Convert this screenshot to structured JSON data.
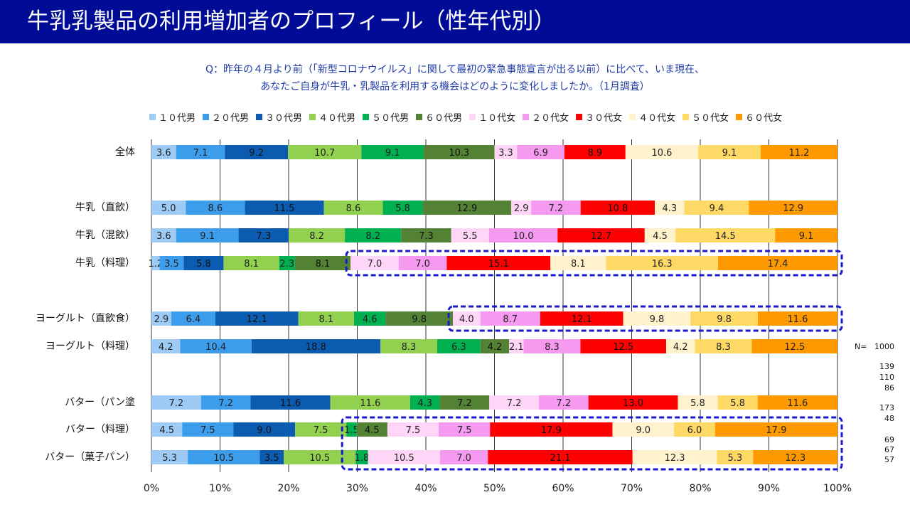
{
  "title": "牛乳乳製品の利用増加者のプロフィール（性年代別）",
  "question": {
    "line1": "Q：昨年の４月より前（「新型コロナウイルス」に関して最初の緊急事態宣言が出る以前）に比べて、いま現在、",
    "line2": "あなたご自身が牛乳・乳製品を利用する機会はどのように変化しましたか。（1月調査）"
  },
  "n_label": "N=",
  "n_values": [
    "1000",
    "139",
    "110",
    "86",
    "173",
    "48",
    "69",
    "67",
    "57"
  ],
  "colors": {
    "title_bg": "#000c96",
    "highlight_box": "#1a1acc",
    "grid": "#000000"
  },
  "chart_data": {
    "type": "bar",
    "orientation": "horizontal",
    "stacked": true,
    "xlim": [
      0,
      100
    ],
    "x_ticks": [
      "0%",
      "10%",
      "20%",
      "30%",
      "40%",
      "50%",
      "60%",
      "70%",
      "80%",
      "90%",
      "100%"
    ],
    "legend_position": "top",
    "categories": [
      "全体",
      "牛乳（直飲）",
      "牛乳（混飲）",
      "牛乳（料理）",
      "ヨーグルト（直飲食）",
      "ヨーグルト（料理）",
      "バター（パン塗",
      "バター（料理）",
      "バター（菓子パン）"
    ],
    "series": [
      {
        "name": "１０代男",
        "color": "#9dcbf5",
        "values": [
          3.6,
          5.0,
          3.6,
          1.2,
          2.9,
          4.2,
          7.2,
          4.5,
          5.3
        ]
      },
      {
        "name": "２０代男",
        "color": "#3d9ded",
        "values": [
          7.1,
          8.6,
          9.1,
          3.5,
          6.4,
          10.4,
          7.2,
          7.5,
          10.5
        ]
      },
      {
        "name": "３０代男",
        "color": "#0b5cb0",
        "values": [
          9.2,
          11.5,
          7.3,
          5.8,
          12.1,
          18.8,
          11.6,
          9.0,
          3.5
        ]
      },
      {
        "name": "４０代男",
        "color": "#92d050",
        "values": [
          10.7,
          8.6,
          8.2,
          8.1,
          8.1,
          8.3,
          11.6,
          7.5,
          10.5
        ]
      },
      {
        "name": "５０代男",
        "color": "#00b050",
        "values": [
          9.1,
          5.8,
          8.2,
          2.3,
          4.6,
          6.3,
          4.3,
          1.5,
          1.8
        ]
      },
      {
        "name": "６０代男",
        "color": "#548235",
        "values": [
          10.3,
          12.9,
          7.3,
          8.1,
          9.8,
          4.2,
          7.2,
          4.5,
          0.0
        ]
      },
      {
        "name": "１０代女",
        "color": "#ffd6f7",
        "values": [
          3.3,
          2.9,
          5.5,
          7.0,
          4.0,
          2.1,
          7.2,
          7.5,
          10.5
        ]
      },
      {
        "name": "２０代女",
        "color": "#f59af0",
        "values": [
          6.9,
          7.2,
          10.0,
          7.0,
          8.7,
          8.3,
          7.2,
          7.5,
          7.0
        ]
      },
      {
        "name": "３０代女",
        "color": "#ff0000",
        "values": [
          8.9,
          10.8,
          12.7,
          15.1,
          12.1,
          12.5,
          13.0,
          17.9,
          21.1
        ]
      },
      {
        "name": "４０代女",
        "color": "#fff2cc",
        "values": [
          10.6,
          4.3,
          4.5,
          8.1,
          9.8,
          4.2,
          5.8,
          9.0,
          12.3
        ]
      },
      {
        "name": "５０代女",
        "color": "#ffd966",
        "values": [
          9.1,
          9.4,
          14.5,
          16.3,
          9.8,
          8.3,
          5.8,
          6.0,
          5.3
        ]
      },
      {
        "name": "６０代女",
        "color": "#ff9900",
        "values": [
          11.2,
          12.9,
          9.1,
          17.4,
          11.6,
          12.5,
          11.6,
          17.9,
          12.3
        ]
      }
    ],
    "value_labels": [
      [
        "3.6",
        "7.1",
        "9.2",
        "10.7",
        "9.1",
        "10.3",
        "3.3",
        "6.9",
        "8.9",
        "10.6",
        "9.1",
        "11.2"
      ],
      [
        "5.0",
        "8.6",
        "11.5",
        "8.6",
        "5.8",
        "12.9",
        "2.9",
        "7.2",
        "10.8",
        "4.3",
        "9.4",
        "12.9"
      ],
      [
        "3.6",
        "9.1",
        "7.3",
        "8.2",
        "8.2",
        "7.3",
        "5.5",
        "10.0",
        "12.7",
        "4.5",
        "14.5",
        "9.1"
      ],
      [
        "1.2",
        "3.5",
        "5.8",
        "8.1",
        "2.3",
        "8.1",
        "7.0",
        "7.0",
        "15.1",
        "8.1",
        "16.3",
        "17.4"
      ],
      [
        "2.9",
        "6.4",
        "12.1",
        "8.1",
        "4.6",
        "9.8",
        "4.0",
        "8.7",
        "12.1",
        "9.8",
        "9.8",
        "11.6"
      ],
      [
        "4.2",
        "10.4",
        "18.8",
        "8.3",
        "6.3",
        "4.2",
        "2.1",
        "8.3",
        "12.5",
        "4.2",
        "8.3",
        "12.5"
      ],
      [
        "7.2",
        "7.2",
        "11.6",
        "11.6",
        "4.3",
        "7.2",
        "7.2",
        "7.2",
        "13.0",
        "5.8",
        "5.8",
        "11.6"
      ],
      [
        "4.5",
        "7.5",
        "9.0",
        "7.5",
        "1.5",
        "4.5",
        "7.5",
        "7.5",
        "17.9",
        "9.0",
        "6.0",
        "17.9"
      ],
      [
        "5.3",
        "10.5",
        "3.5",
        "10.5",
        "1.8",
        "",
        "10.5",
        "7.0",
        "21.1",
        "12.3",
        "5.3",
        "12.3"
      ]
    ],
    "highlighted": [
      {
        "category": "牛乳（料理）",
        "from_series": "１０代女"
      },
      {
        "category": "ヨーグルト（直飲食）",
        "from_series": "１０代女"
      },
      {
        "category": "バター（料理）",
        "from_series": "５０代男"
      },
      {
        "category": "バター（菓子パン）",
        "from_series": "５０代男"
      }
    ]
  }
}
